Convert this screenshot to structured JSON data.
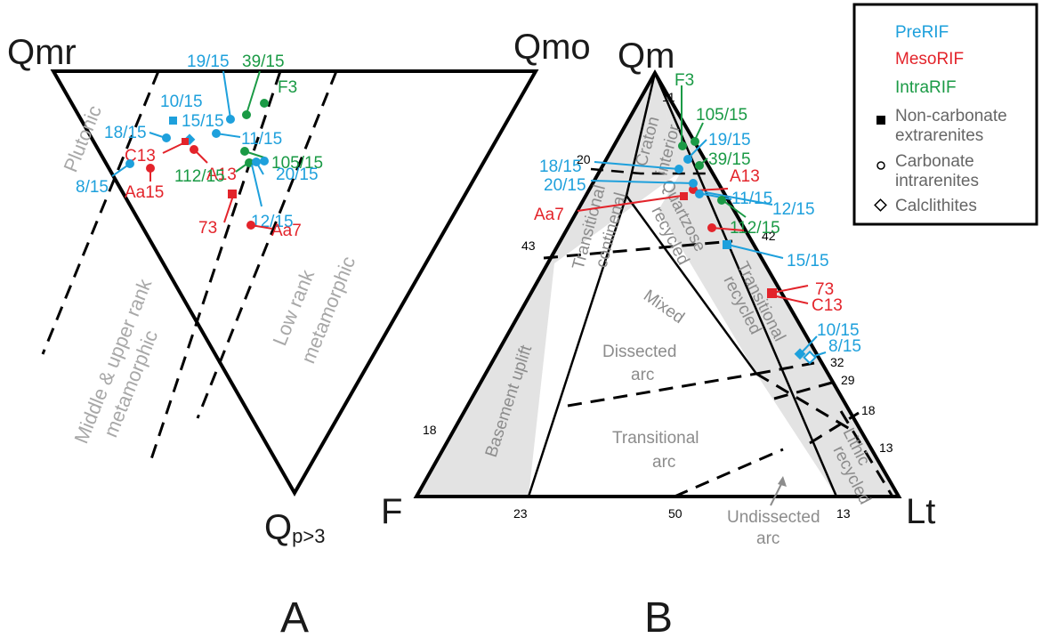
{
  "panel_a": {
    "label": "A",
    "corners": {
      "top_left": "Qmr",
      "top_right": "Qmo",
      "bottom": "Q",
      "bottom_sub": "p>3"
    },
    "fields": {
      "plutonic": "Plutonic",
      "mid_upper_1": "Middle & upper rank",
      "mid_upper_2": "metamorphic",
      "low_1": "Low rank",
      "low_2": "metamorphic"
    },
    "samples": [
      {
        "name": "19/15",
        "group": "PreRIF"
      },
      {
        "name": "39/15",
        "group": "IntraRIF"
      },
      {
        "name": "F3",
        "group": "IntraRIF"
      },
      {
        "name": "10/15",
        "group": "PreRIF"
      },
      {
        "name": "18/15",
        "group": "PreRIF"
      },
      {
        "name": "15/15",
        "group": "PreRIF"
      },
      {
        "name": "C13",
        "group": "MesoRIF"
      },
      {
        "name": "11/15",
        "group": "PreRIF"
      },
      {
        "name": "A13",
        "group": "MesoRIF"
      },
      {
        "name": "105/15",
        "group": "IntraRIF"
      },
      {
        "name": "8/15",
        "group": "PreRIF"
      },
      {
        "name": "Aa15",
        "group": "MesoRIF"
      },
      {
        "name": "112/15",
        "group": "IntraRIF"
      },
      {
        "name": "20/15",
        "group": "PreRIF"
      },
      {
        "name": "12/15",
        "group": "PreRIF"
      },
      {
        "name": "73",
        "group": "MesoRIF"
      },
      {
        "name": "Aa7",
        "group": "MesoRIF"
      }
    ]
  },
  "panel_b": {
    "label": "B",
    "corners": {
      "top": "Qm",
      "left": "F",
      "right": "Lt"
    },
    "fields": {
      "craton_1": "Craton",
      "craton_2": "interior",
      "trans_cont_1": "Transitional",
      "trans_cont_2": "continenal",
      "quartzose_1": "Quartzose",
      "quartzose_2": "recycled",
      "mixed": "Mixed",
      "trans_rec_1": "Transitional",
      "trans_rec_2": "recycled",
      "basement": "Basement uplift",
      "dissected_1": "Dissected",
      "dissected_2": "arc",
      "trans_arc_1": "Transitional",
      "trans_arc_2": "arc",
      "lithic_1": "Lithic",
      "lithic_2": "recycled",
      "undissected_1": "Undissected",
      "undissected_2": "arc"
    },
    "ticks": {
      "t11": "11",
      "t20": "20",
      "t43": "43",
      "t42": "42",
      "t32": "32",
      "t29": "29",
      "t18r": "18",
      "t13r": "13",
      "t18l": "18",
      "t23": "23",
      "t50": "50",
      "t13b": "13"
    },
    "samples": [
      {
        "name": "F3",
        "group": "IntraRIF"
      },
      {
        "name": "105/15",
        "group": "IntraRIF"
      },
      {
        "name": "19/15",
        "group": "PreRIF"
      },
      {
        "name": "39/15",
        "group": "IntraRIF"
      },
      {
        "name": "18/15",
        "group": "PreRIF"
      },
      {
        "name": "A13",
        "group": "MesoRIF"
      },
      {
        "name": "20/15",
        "group": "PreRIF"
      },
      {
        "name": "11/15",
        "group": "PreRIF"
      },
      {
        "name": "12/15",
        "group": "PreRIF"
      },
      {
        "name": "Aa7",
        "group": "MesoRIF"
      },
      {
        "name": "112/15",
        "group": "IntraRIF"
      },
      {
        "name": "15/15",
        "group": "PreRIF"
      },
      {
        "name": "73",
        "group": "MesoRIF"
      },
      {
        "name": "C13",
        "group": "MesoRIF"
      },
      {
        "name": "10/15",
        "group": "PreRIF"
      },
      {
        "name": "8/15",
        "group": "PreRIF"
      }
    ]
  },
  "legend": {
    "prerif": "PreRIF",
    "mesorif": "MesoRIF",
    "intrarif": "IntraRIF",
    "noncarb_1": "Non-carbonate",
    "noncarb_2": "extrarenites",
    "carb_1": "Carbonate",
    "carb_2": "intrarenites",
    "calc": "Calclithites"
  },
  "colors": {
    "prerif": "#1ea0dc",
    "mesorif": "#e3242b",
    "intrarif": "#1a9a45",
    "field_fill": "#e3e3e3"
  }
}
